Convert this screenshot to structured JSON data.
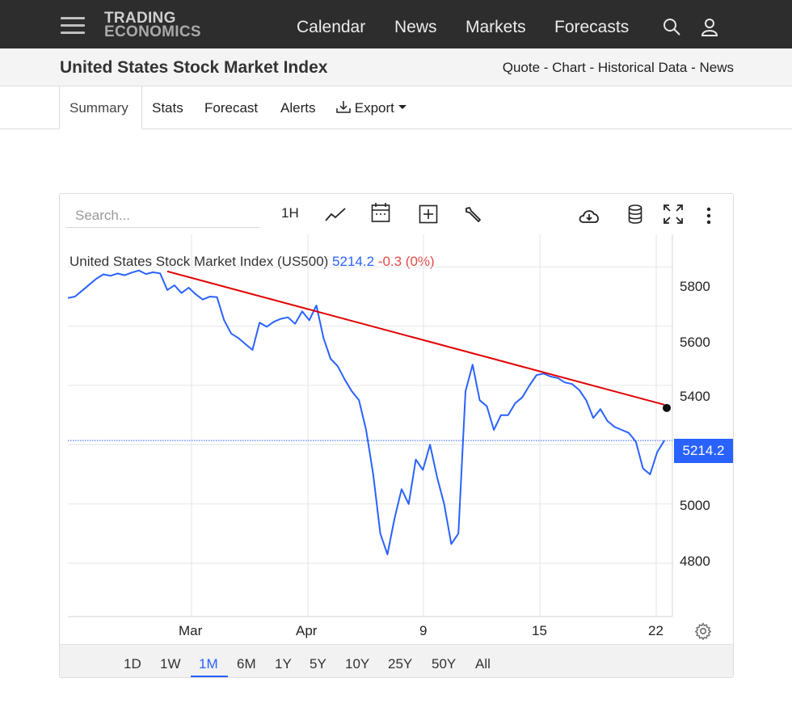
{
  "nav": {
    "logo_line1": "TRADING",
    "logo_line2": "ECONOMICS",
    "links": [
      "Calendar",
      "News",
      "Markets",
      "Forecasts"
    ],
    "icons": [
      "search-icon",
      "user-icon",
      "menu-icon"
    ]
  },
  "subheader": {
    "title": "United States Stock Market Index",
    "quick_links": [
      "Quote",
      "Chart",
      "Historical Data",
      "News"
    ],
    "separator": " - "
  },
  "tabs": {
    "items": [
      "Summary",
      "Stats",
      "Forecast",
      "Alerts",
      "Export"
    ],
    "active": "Summary"
  },
  "chart_toolbar": {
    "search_placeholder": "Search...",
    "interval": "1H",
    "icons": [
      "line-chart-icon",
      "calendar-icon",
      "add-indicator-icon",
      "wrench-icon",
      "download-cloud-icon",
      "database-icon",
      "fullscreen-icon",
      "more-vertical-icon"
    ]
  },
  "legend": {
    "name": "United States Stock Market Index (US500)",
    "price": "5214.2",
    "change": "-0.3 (0%)"
  },
  "price_tag": "5214.2",
  "range_buttons": [
    "1D",
    "1W",
    "1M",
    "6M",
    "1Y",
    "5Y",
    "10Y",
    "25Y",
    "50Y",
    "All"
  ],
  "active_range": "1M",
  "colors": {
    "line": "#2962ff",
    "trendline": "#e00000",
    "down": "#e34a4a",
    "topbar": "#2d2d2d"
  },
  "chart_data": {
    "type": "line",
    "title": "",
    "ylim": [
      4620,
      5910
    ],
    "y_ticks": [
      5800,
      5600,
      5400,
      5000,
      4800
    ],
    "x_tick_labels": [
      "Mar",
      "Apr",
      "9",
      "15",
      "22"
    ],
    "last_value": 5214.2,
    "grid": true,
    "series": [
      {
        "values": [
          5695,
          5700,
          5720,
          5740,
          5760,
          5775,
          5770,
          5778,
          5772,
          5781,
          5788,
          5776,
          5782,
          5778,
          5722,
          5738,
          5712,
          5730,
          5708,
          5690,
          5700,
          5698,
          5620,
          5575,
          5560,
          5540,
          5520,
          5612,
          5598,
          5615,
          5625,
          5630,
          5608,
          5650,
          5620,
          5670,
          5560,
          5490,
          5465,
          5420,
          5380,
          5350,
          5250,
          5100,
          4900,
          4830,
          4950,
          5050,
          5000,
          5150,
          5115,
          5200,
          5090,
          5000,
          4865,
          4900,
          5380,
          5470,
          5350,
          5330,
          5250,
          5300,
          5300,
          5340,
          5360,
          5400,
          5435,
          5440,
          5430,
          5425,
          5410,
          5405,
          5385,
          5350,
          5290,
          5320,
          5280,
          5260,
          5250,
          5240,
          5210,
          5120,
          5100,
          5175,
          5214
        ]
      },
      {
        "name": "",
        "type": "trendline",
        "points": [
          [
            14,
            5785
          ],
          [
            84,
            5335
          ]
        ]
      }
    ]
  }
}
